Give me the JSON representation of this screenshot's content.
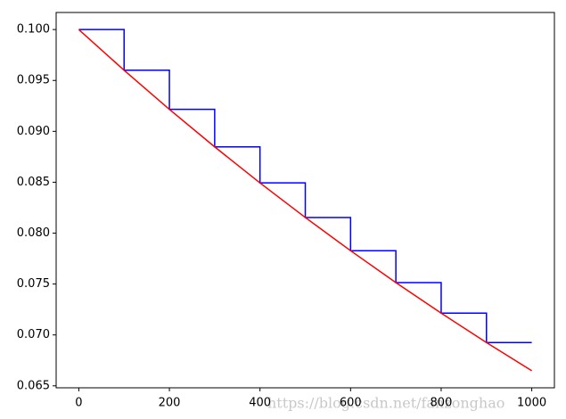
{
  "chart_data": {
    "type": "line",
    "series": [
      {
        "color": "#0000ff",
        "x": [
          0,
          100,
          100,
          200,
          200,
          300,
          300,
          400,
          400,
          500,
          500,
          600,
          600,
          700,
          700,
          800,
          800,
          900,
          900,
          1000
        ],
        "values": [
          0.1,
          0.1,
          0.096,
          0.096,
          0.09216,
          0.09216,
          0.088474,
          0.088474,
          0.084935,
          0.084935,
          0.081537,
          0.081537,
          0.078276,
          0.078276,
          0.075145,
          0.075145,
          0.072139,
          0.072139,
          0.069253,
          0.069253
        ]
      },
      {
        "color": "#ff0000",
        "x": [
          0,
          100,
          200,
          300,
          400,
          500,
          600,
          700,
          800,
          900,
          1000
        ],
        "values": [
          0.1,
          0.096,
          0.09216,
          0.088474,
          0.084935,
          0.081537,
          0.078276,
          0.075145,
          0.072139,
          0.069253,
          0.066483
        ]
      }
    ],
    "xlim": [
      -50,
      1050
    ],
    "xticks": [
      0,
      200,
      400,
      600,
      800,
      1000
    ],
    "ylim": [
      0.064807,
      0.101676
    ],
    "yticks": [
      0.065,
      {
        "value": 0.07,
        "label": "0.070"
      },
      0.075,
      {
        "value": 0.08,
        "label": "0.080"
      },
      0.085,
      {
        "value": 0.09,
        "label": "0.090"
      },
      0.095,
      {
        "value": 0.1,
        "label": "0.100"
      }
    ],
    "grid": false,
    "watermark": "https://blog.csdn.net/fanzonghao"
  }
}
